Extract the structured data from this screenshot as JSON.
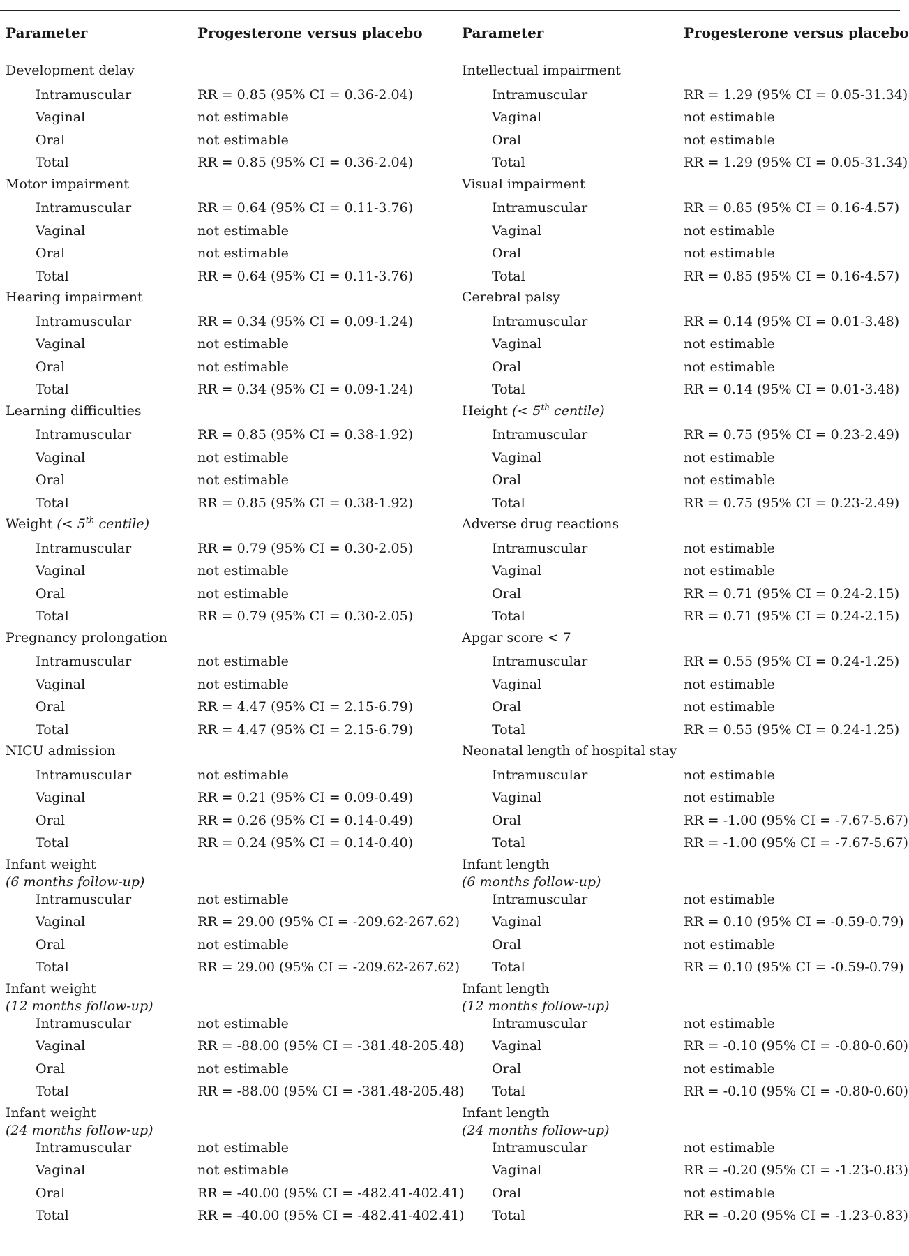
{
  "headers": {
    "parameter": "Parameter",
    "comparison": "Progesterone versus placebo"
  },
  "left": [
    {
      "name": "Development delay",
      "rows": [
        {
          "route": "Intramuscular",
          "value": "RR = 0.85 (95% CI = 0.36-2.04)"
        },
        {
          "route": "Vaginal",
          "value": "not estimable"
        },
        {
          "route": "Oral",
          "value": "not estimable"
        },
        {
          "route": "Total",
          "value": "RR = 0.85 (95% CI = 0.36-2.04)"
        }
      ]
    },
    {
      "name": "Motor impairment",
      "rows": [
        {
          "route": "Intramuscular",
          "value": "RR = 0.64 (95% CI = 0.11-3.76)"
        },
        {
          "route": "Vaginal",
          "value": "not estimable"
        },
        {
          "route": "Oral",
          "value": "not estimable"
        },
        {
          "route": "Total",
          "value": "RR = 0.64 (95% CI = 0.11-3.76)"
        }
      ]
    },
    {
      "name": "Hearing impairment",
      "rows": [
        {
          "route": "Intramuscular",
          "value": "RR = 0.34 (95% CI = 0.09-1.24)"
        },
        {
          "route": "Vaginal",
          "value": "not estimable"
        },
        {
          "route": "Oral",
          "value": "not estimable"
        },
        {
          "route": "Total",
          "value": "RR = 0.34 (95% CI = 0.09-1.24)"
        }
      ]
    },
    {
      "name": "Learning difficulties",
      "rows": [
        {
          "route": "Intramuscular",
          "value": "RR = 0.85 (95% CI = 0.38-1.92)"
        },
        {
          "route": "Vaginal",
          "value": "not estimable"
        },
        {
          "route": "Oral",
          "value": "not estimable"
        },
        {
          "route": "Total",
          "value": "RR = 0.85 (95% CI = 0.38-1.92)"
        }
      ]
    },
    {
      "name": "Weight",
      "qualifier_pre": "(< 5",
      "qualifier_sup": "th",
      "qualifier_post": " centile)",
      "rows": [
        {
          "route": "Intramuscular",
          "value": "RR = 0.79 (95% CI = 0.30-2.05)"
        },
        {
          "route": "Vaginal",
          "value": "not estimable"
        },
        {
          "route": "Oral",
          "value": "not estimable"
        },
        {
          "route": "Total",
          "value": "RR = 0.79 (95% CI = 0.30-2.05)"
        }
      ]
    },
    {
      "name": "Pregnancy prolongation",
      "rows": [
        {
          "route": "Intramuscular",
          "value": "not estimable"
        },
        {
          "route": "Vaginal",
          "value": "not estimable"
        },
        {
          "route": "Oral",
          "value": "RR = 4.47 (95% CI = 2.15-6.79)"
        },
        {
          "route": "Total",
          "value": "RR = 4.47 (95% CI = 2.15-6.79)"
        }
      ]
    },
    {
      "name": "NICU admission",
      "rows": [
        {
          "route": "Intramuscular",
          "value": "not estimable"
        },
        {
          "route": "Vaginal",
          "value": "RR = 0.21 (95% CI = 0.09-0.49)"
        },
        {
          "route": "Oral",
          "value": "RR = 0.26 (95% CI = 0.14-0.49)"
        },
        {
          "route": "Total",
          "value": "RR = 0.24 (95% CI = 0.14-0.40)"
        }
      ]
    },
    {
      "name": "Infant weight",
      "subline": "(6 months follow-up)",
      "rows": [
        {
          "route": "Intramuscular",
          "value": "not estimable"
        },
        {
          "route": "Vaginal",
          "value": "RR = 29.00 (95% CI = -209.62-267.62)"
        },
        {
          "route": "Oral",
          "value": "not estimable"
        },
        {
          "route": "Total",
          "value": "RR = 29.00 (95% CI = -209.62-267.62)"
        }
      ]
    },
    {
      "name": "Infant weight",
      "subline": "(12 months follow-up)",
      "rows": [
        {
          "route": "Intramuscular",
          "value": "not estimable"
        },
        {
          "route": "Vaginal",
          "value": "RR = -88.00 (95% CI = -381.48-205.48)"
        },
        {
          "route": "Oral",
          "value": "not estimable"
        },
        {
          "route": "Total",
          "value": "RR = -88.00 (95% CI = -381.48-205.48)"
        }
      ]
    },
    {
      "name": "Infant weight",
      "subline": "(24 months follow-up)",
      "rows": [
        {
          "route": "Intramuscular",
          "value": "not estimable"
        },
        {
          "route": "Vaginal",
          "value": "not estimable"
        },
        {
          "route": "Oral",
          "value": "RR = -40.00 (95% CI = -482.41-402.41)"
        },
        {
          "route": "Total",
          "value": "RR = -40.00 (95% CI = -482.41-402.41)"
        }
      ]
    }
  ],
  "right": [
    {
      "name": "Intellectual impairment",
      "rows": [
        {
          "route": "Intramuscular",
          "value": "RR = 1.29 (95% CI = 0.05-31.34)"
        },
        {
          "route": "Vaginal",
          "value": "not estimable"
        },
        {
          "route": "Oral",
          "value": "not estimable"
        },
        {
          "route": "Total",
          "value": "RR = 1.29 (95% CI = 0.05-31.34)"
        }
      ]
    },
    {
      "name": "Visual impairment",
      "rows": [
        {
          "route": "Intramuscular",
          "value": "RR = 0.85 (95% CI = 0.16-4.57)"
        },
        {
          "route": "Vaginal",
          "value": "not estimable"
        },
        {
          "route": "Oral",
          "value": "not estimable"
        },
        {
          "route": "Total",
          "value": "RR = 0.85 (95% CI = 0.16-4.57)"
        }
      ]
    },
    {
      "name": "Cerebral palsy",
      "rows": [
        {
          "route": "Intramuscular",
          "value": "RR = 0.14 (95% CI = 0.01-3.48)"
        },
        {
          "route": "Vaginal",
          "value": "not estimable"
        },
        {
          "route": "Oral",
          "value": "not estimable"
        },
        {
          "route": "Total",
          "value": "RR = 0.14 (95% CI = 0.01-3.48)"
        }
      ]
    },
    {
      "name": "Height",
      "qualifier_pre": "(< 5",
      "qualifier_sup": "th",
      "qualifier_post": " centile)",
      "rows": [
        {
          "route": "Intramuscular",
          "value": "RR = 0.75 (95% CI = 0.23-2.49)"
        },
        {
          "route": "Vaginal",
          "value": "not estimable"
        },
        {
          "route": "Oral",
          "value": "not estimable"
        },
        {
          "route": "Total",
          "value": "RR = 0.75 (95% CI = 0.23-2.49)"
        }
      ]
    },
    {
      "name": "Adverse drug reactions",
      "rows": [
        {
          "route": "Intramuscular",
          "value": "not estimable"
        },
        {
          "route": "Vaginal",
          "value": "not estimable"
        },
        {
          "route": "Oral",
          "value": "RR = 0.71 (95% CI = 0.24-2.15)"
        },
        {
          "route": "Total",
          "value": "RR = 0.71 (95% CI = 0.24-2.15)"
        }
      ]
    },
    {
      "name": "Apgar score < 7",
      "rows": [
        {
          "route": "Intramuscular",
          "value": "RR = 0.55 (95% CI = 0.24-1.25)"
        },
        {
          "route": "Vaginal",
          "value": "not estimable"
        },
        {
          "route": "Oral",
          "value": "not estimable"
        },
        {
          "route": "Total",
          "value": "RR = 0.55 (95% CI = 0.24-1.25)"
        }
      ]
    },
    {
      "name": "Neonatal length of hospital stay",
      "rows": [
        {
          "route": "Intramuscular",
          "value": "not estimable"
        },
        {
          "route": "Vaginal",
          "value": "not estimable"
        },
        {
          "route": "Oral",
          "value": "RR = -1.00 (95% CI = -7.67-5.67)"
        },
        {
          "route": "Total",
          "value": "RR = -1.00 (95% CI = -7.67-5.67)"
        }
      ]
    },
    {
      "name": "Infant length",
      "subline": "(6 months follow-up)",
      "rows": [
        {
          "route": "Intramuscular",
          "value": "not estimable"
        },
        {
          "route": "Vaginal",
          "value": "RR = 0.10 (95% CI = -0.59-0.79)"
        },
        {
          "route": "Oral",
          "value": "not estimable"
        },
        {
          "route": "Total",
          "value": "RR = 0.10 (95% CI = -0.59-0.79)"
        }
      ]
    },
    {
      "name": "Infant length",
      "subline": "(12 months follow-up)",
      "rows": [
        {
          "route": "Intramuscular",
          "value": "not estimable"
        },
        {
          "route": "Vaginal",
          "value": "RR = -0.10 (95% CI = -0.80-0.60)"
        },
        {
          "route": "Oral",
          "value": "not estimable"
        },
        {
          "route": "Total",
          "value": "RR = -0.10 (95% CI = -0.80-0.60)"
        }
      ]
    },
    {
      "name": "Infant length",
      "subline": "(24 months follow-up)",
      "rows": [
        {
          "route": "Intramuscular",
          "value": "not estimable"
        },
        {
          "route": "Vaginal",
          "value": "RR = -0.20 (95% CI = -1.23-0.83)"
        },
        {
          "route": "Oral",
          "value": "not estimable"
        },
        {
          "route": "Total",
          "value": "RR = -0.20 (95% CI = -1.23-0.83)"
        }
      ]
    }
  ]
}
